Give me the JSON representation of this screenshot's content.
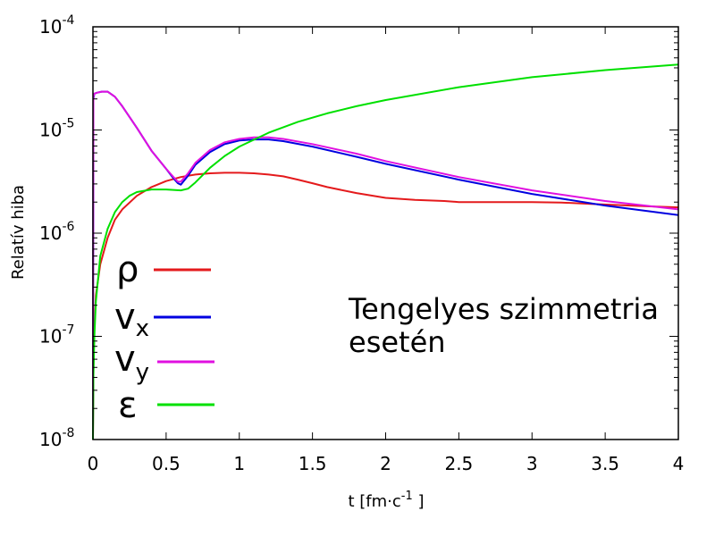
{
  "chart_data": {
    "type": "line",
    "xlabel": "t [fm·c",
    "xlabel_exp": "-1",
    "xlabel_end": " ]",
    "ylabel": "Relatív hiba",
    "xlim": [
      0,
      4
    ],
    "ylim": [
      1e-08,
      0.0001
    ],
    "yscale": "log",
    "grid": false,
    "legend_position": "left",
    "xticks": [
      {
        "value": 0,
        "label": "0"
      },
      {
        "value": 0.5,
        "label": "0.5"
      },
      {
        "value": 1,
        "label": "1"
      },
      {
        "value": 1.5,
        "label": "1.5"
      },
      {
        "value": 2,
        "label": "2"
      },
      {
        "value": 2.5,
        "label": "2.5"
      },
      {
        "value": 3,
        "label": "3"
      },
      {
        "value": 3.5,
        "label": "3.5"
      },
      {
        "value": 4,
        "label": "4"
      }
    ],
    "yticks": [
      {
        "value": 1e-08,
        "base": "10",
        "exp": "-8"
      },
      {
        "value": 1e-07,
        "base": "10",
        "exp": "-7"
      },
      {
        "value": 1e-06,
        "base": "10",
        "exp": "-6"
      },
      {
        "value": 1e-05,
        "base": "10",
        "exp": "-5"
      },
      {
        "value": 0.0001,
        "base": "10",
        "exp": "-4"
      }
    ],
    "annotation": [
      "Tengelyes szimmetria",
      "esetén"
    ],
    "series": [
      {
        "name": "ρ",
        "sub": "",
        "color": "#e41a1c",
        "x": [
          0,
          0.003,
          0.01,
          0.02,
          0.05,
          0.1,
          0.15,
          0.2,
          0.3,
          0.4,
          0.5,
          0.6,
          0.7,
          0.8,
          0.9,
          1.0,
          1.1,
          1.2,
          1.3,
          1.4,
          1.5,
          1.6,
          1.8,
          2.0,
          2.2,
          2.4,
          2.5,
          2.6,
          2.8,
          3.0,
          3.2,
          3.4,
          3.6,
          3.8,
          4.0
        ],
        "y": [
          1e-08,
          5e-08,
          1.2e-07,
          2.5e-07,
          5e-07,
          9e-07,
          1.35e-06,
          1.7e-06,
          2.3e-06,
          2.8e-06,
          3.2e-06,
          3.5e-06,
          3.7e-06,
          3.8e-06,
          3.85e-06,
          3.85e-06,
          3.8e-06,
          3.7e-06,
          3.55e-06,
          3.3e-06,
          3.05e-06,
          2.8e-06,
          2.45e-06,
          2.2e-06,
          2.1e-06,
          2.05e-06,
          2e-06,
          2e-06,
          2e-06,
          2e-06,
          1.98e-06,
          1.92e-06,
          1.87e-06,
          1.82e-06,
          1.78e-06
        ]
      },
      {
        "name": "v",
        "sub": "x",
        "color": "#0000e0",
        "x": [
          0,
          0.003,
          0.01,
          0.03,
          0.06,
          0.1,
          0.15,
          0.2,
          0.3,
          0.4,
          0.5,
          0.55,
          0.58,
          0.6,
          0.65,
          0.7,
          0.8,
          0.9,
          1.0,
          1.1,
          1.2,
          1.3,
          1.5,
          1.8,
          2.0,
          2.5,
          3.0,
          3.5,
          4.0
        ],
        "y": [
          1e-08,
          2e-05,
          2.25e-05,
          2.3e-05,
          2.35e-05,
          2.35e-05,
          2.1e-05,
          1.7e-05,
          1.05e-05,
          6.3e-06,
          4.2e-06,
          3.4e-06,
          3.05e-06,
          2.95e-06,
          3.6e-06,
          4.6e-06,
          6.1e-06,
          7.3e-06,
          7.9e-06,
          8.1e-06,
          8.1e-06,
          7.8e-06,
          6.9e-06,
          5.5e-06,
          4.7e-06,
          3.3e-06,
          2.4e-06,
          1.85e-06,
          1.5e-06
        ]
      },
      {
        "name": "v",
        "sub": "y",
        "color": "#e010e0",
        "x": [
          0,
          0.003,
          0.01,
          0.03,
          0.06,
          0.1,
          0.15,
          0.2,
          0.3,
          0.4,
          0.5,
          0.55,
          0.58,
          0.6,
          0.65,
          0.7,
          0.8,
          0.9,
          1.0,
          1.1,
          1.2,
          1.3,
          1.5,
          1.8,
          2.0,
          2.5,
          3.0,
          3.5,
          4.0
        ],
        "y": [
          1e-08,
          2.1e-05,
          2.25e-05,
          2.3e-05,
          2.35e-05,
          2.35e-05,
          2.1e-05,
          1.7e-05,
          1.05e-05,
          6.3e-06,
          4.2e-06,
          3.5e-06,
          3.15e-06,
          3.15e-06,
          3.8e-06,
          4.8e-06,
          6.4e-06,
          7.6e-06,
          8.2e-06,
          8.5e-06,
          8.5e-06,
          8.2e-06,
          7.3e-06,
          5.9e-06,
          5e-06,
          3.5e-06,
          2.6e-06,
          2.05e-06,
          1.7e-06
        ]
      },
      {
        "name": "ε",
        "sub": "",
        "color": "#00e000",
        "x": [
          0,
          0.003,
          0.01,
          0.02,
          0.05,
          0.1,
          0.15,
          0.2,
          0.25,
          0.3,
          0.4,
          0.5,
          0.6,
          0.65,
          0.7,
          0.8,
          0.9,
          1.0,
          1.2,
          1.4,
          1.6,
          1.8,
          2.0,
          2.5,
          3.0,
          3.5,
          4.0
        ],
        "y": [
          1e-08,
          4e-08,
          1e-07,
          2.2e-07,
          6e-07,
          1.1e-06,
          1.6e-06,
          2e-06,
          2.3e-06,
          2.5e-06,
          2.65e-06,
          2.65e-06,
          2.6e-06,
          2.7e-06,
          3.1e-06,
          4.3e-06,
          5.6e-06,
          6.9e-06,
          9.4e-06,
          1.2e-05,
          1.45e-05,
          1.7e-05,
          1.95e-05,
          2.6e-05,
          3.25e-05,
          3.8e-05,
          4.3e-05
        ]
      }
    ]
  }
}
